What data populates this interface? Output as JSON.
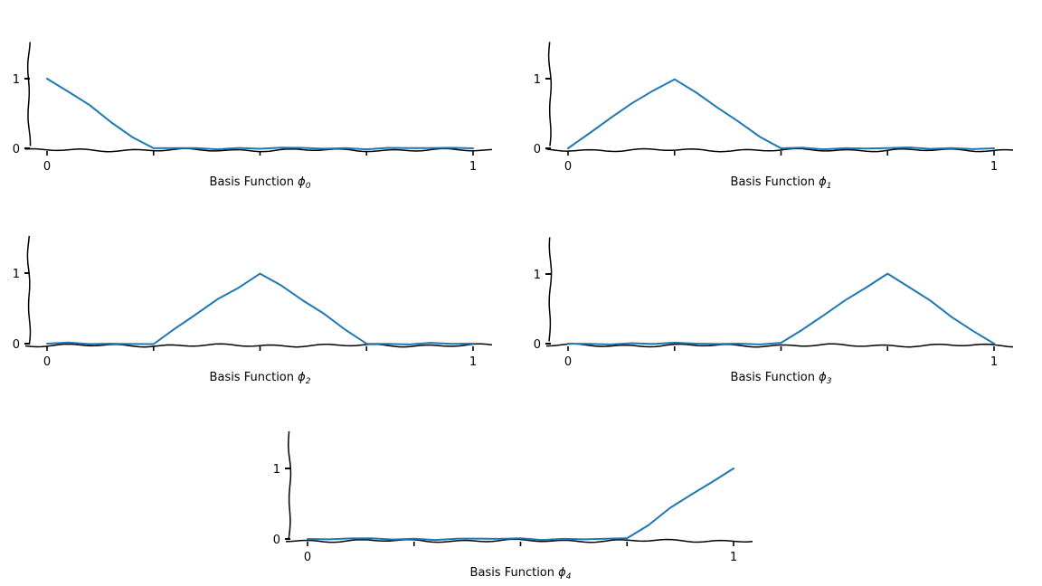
{
  "colors": {
    "line": "#1f77b4",
    "axis": "#000000",
    "background": "#ffffff"
  },
  "chart_data": [
    {
      "type": "line",
      "title": "",
      "xlabel": "Basis Function ϕ0",
      "xlabel_text": "Basis Function",
      "xlabel_symbol": "ϕ",
      "xlabel_subscript": "0",
      "ylabel": "",
      "xlim": [
        0,
        1
      ],
      "ylim": [
        0,
        1.5
      ],
      "x_ticks": [
        0,
        0.25,
        0.5,
        0.75,
        1
      ],
      "x_tick_labels": [
        "0",
        "",
        "",
        "",
        "1"
      ],
      "y_ticks": [
        0,
        1
      ],
      "y_tick_labels": [
        "0",
        "1"
      ],
      "grid": false,
      "style": "xkcd",
      "x": [
        0,
        0.05,
        0.1,
        0.15,
        0.2,
        0.25,
        0.3,
        0.35,
        0.4,
        0.45,
        0.5,
        0.55,
        0.6,
        0.65,
        0.7,
        0.75,
        0.8,
        0.85,
        0.9,
        0.95,
        1
      ],
      "y": [
        1,
        0.82,
        0.62,
        0.39,
        0.15,
        0,
        0,
        0,
        0,
        0,
        0,
        0,
        0,
        0,
        0,
        0,
        0,
        0,
        0,
        0,
        0
      ]
    },
    {
      "type": "line",
      "title": "",
      "xlabel": "Basis Function ϕ1",
      "xlabel_text": "Basis Function",
      "xlabel_symbol": "ϕ",
      "xlabel_subscript": "1",
      "ylabel": "",
      "xlim": [
        0,
        1
      ],
      "ylim": [
        0,
        1.5
      ],
      "x_ticks": [
        0,
        0.25,
        0.5,
        0.75,
        1
      ],
      "x_tick_labels": [
        "0",
        "",
        "",
        "",
        "1"
      ],
      "y_ticks": [
        0,
        1
      ],
      "y_tick_labels": [
        "0",
        "1"
      ],
      "grid": false,
      "style": "xkcd",
      "x": [
        0,
        0.05,
        0.1,
        0.15,
        0.2,
        0.25,
        0.3,
        0.35,
        0.4,
        0.45,
        0.5,
        0.55,
        0.6,
        0.65,
        0.7,
        0.75,
        0.8,
        0.85,
        0.9,
        0.95,
        1
      ],
      "y": [
        0,
        0.21,
        0.44,
        0.64,
        0.82,
        1,
        0.8,
        0.6,
        0.38,
        0.16,
        0,
        0,
        0,
        0,
        0,
        0,
        0,
        0,
        0,
        0,
        0
      ]
    },
    {
      "type": "line",
      "title": "",
      "xlabel": "Basis Function ϕ2",
      "xlabel_text": "Basis Function",
      "xlabel_symbol": "ϕ",
      "xlabel_subscript": "2",
      "ylabel": "",
      "xlim": [
        0,
        1
      ],
      "ylim": [
        0,
        1.5
      ],
      "x_ticks": [
        0,
        0.25,
        0.5,
        0.75,
        1
      ],
      "x_tick_labels": [
        "0",
        "",
        "",
        "",
        "1"
      ],
      "y_ticks": [
        0,
        1
      ],
      "y_tick_labels": [
        "0",
        "1"
      ],
      "grid": false,
      "style": "xkcd",
      "x": [
        0,
        0.05,
        0.1,
        0.15,
        0.2,
        0.25,
        0.3,
        0.35,
        0.4,
        0.45,
        0.5,
        0.55,
        0.6,
        0.65,
        0.7,
        0.75,
        0.8,
        0.85,
        0.9,
        0.95,
        1
      ],
      "y": [
        0,
        0,
        0,
        0,
        0,
        0,
        0.2,
        0.42,
        0.62,
        0.8,
        1,
        0.82,
        0.62,
        0.41,
        0.2,
        0,
        0,
        0,
        0,
        0,
        0
      ]
    },
    {
      "type": "line",
      "title": "",
      "xlabel": "Basis Function ϕ3",
      "xlabel_text": "Basis Function",
      "xlabel_symbol": "ϕ",
      "xlabel_subscript": "3",
      "ylabel": "",
      "xlim": [
        0,
        1
      ],
      "ylim": [
        0,
        1.5
      ],
      "x_ticks": [
        0,
        0.25,
        0.5,
        0.75,
        1
      ],
      "x_tick_labels": [
        "0",
        "",
        "",
        "",
        "1"
      ],
      "y_ticks": [
        0,
        1
      ],
      "y_tick_labels": [
        "0",
        "1"
      ],
      "grid": false,
      "style": "xkcd",
      "x": [
        0,
        0.05,
        0.1,
        0.15,
        0.2,
        0.25,
        0.3,
        0.35,
        0.4,
        0.45,
        0.5,
        0.55,
        0.6,
        0.65,
        0.7,
        0.75,
        0.8,
        0.85,
        0.9,
        0.95,
        1
      ],
      "y": [
        0,
        0,
        0,
        0,
        0,
        0,
        0,
        0,
        0,
        0,
        0,
        0.2,
        0.4,
        0.62,
        0.82,
        1,
        0.82,
        0.61,
        0.38,
        0.19,
        0
      ]
    },
    {
      "type": "line",
      "title": "",
      "xlabel": "Basis Function ϕ4",
      "xlabel_text": "Basis Function",
      "xlabel_symbol": "ϕ",
      "xlabel_subscript": "4",
      "ylabel": "",
      "xlim": [
        0,
        1
      ],
      "ylim": [
        0,
        1.5
      ],
      "x_ticks": [
        0,
        0.25,
        0.5,
        0.75,
        1
      ],
      "x_tick_labels": [
        "0",
        "",
        "",
        "",
        "1"
      ],
      "y_ticks": [
        0,
        1
      ],
      "y_tick_labels": [
        "0",
        "1"
      ],
      "grid": false,
      "style": "xkcd",
      "x": [
        0,
        0.05,
        0.1,
        0.15,
        0.2,
        0.25,
        0.3,
        0.35,
        0.4,
        0.45,
        0.5,
        0.55,
        0.6,
        0.65,
        0.7,
        0.75,
        0.8,
        0.85,
        0.9,
        0.95,
        1
      ],
      "y": [
        0,
        0,
        0,
        0,
        0,
        0,
        0,
        0,
        0,
        0,
        0,
        0,
        0,
        0,
        0,
        0,
        0.2,
        0.43,
        0.64,
        0.81,
        1
      ]
    }
  ]
}
